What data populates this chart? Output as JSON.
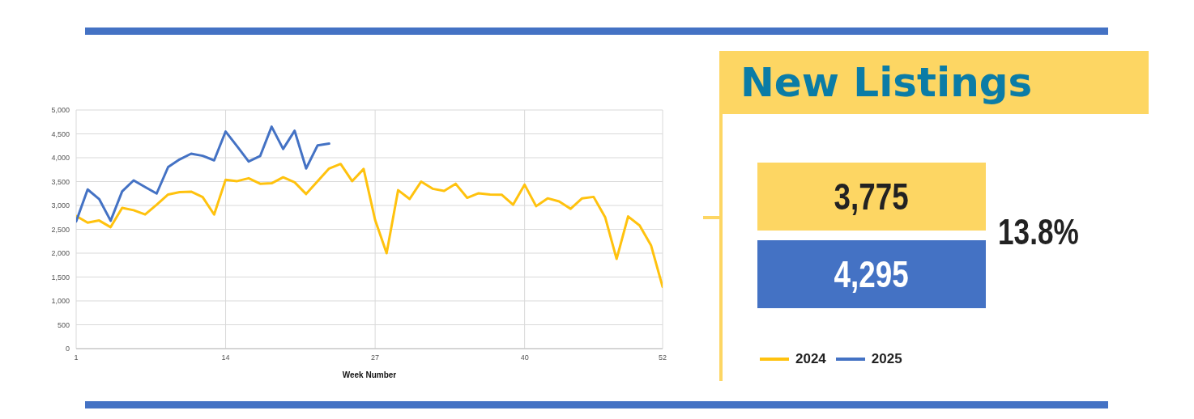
{
  "chart_data": {
    "type": "line",
    "title": "New Listings",
    "xlabel": "Week Number",
    "x": [
      1,
      2,
      3,
      4,
      5,
      6,
      7,
      8,
      9,
      10,
      11,
      12,
      13,
      14,
      15,
      16,
      17,
      18,
      19,
      20,
      21,
      22,
      23,
      24,
      25,
      26,
      27,
      28,
      29,
      30,
      31,
      32,
      33,
      34,
      35,
      36,
      37,
      38,
      39,
      40,
      41,
      42,
      43,
      44,
      45,
      46,
      47,
      48,
      49,
      50,
      51,
      52
    ],
    "series": [
      {
        "name": "2024",
        "color": "#ffc20e",
        "values": [
          2780,
          2640,
          2685,
          2545,
          2950,
          2900,
          2810,
          3015,
          3230,
          3280,
          3290,
          3175,
          2810,
          3540,
          3510,
          3570,
          3455,
          3465,
          3590,
          3485,
          3240,
          3510,
          3775,
          3870,
          3510,
          3765,
          2695,
          2000,
          3320,
          3135,
          3500,
          3350,
          3305,
          3455,
          3160,
          3255,
          3230,
          3225,
          3015,
          3435,
          2985,
          3150,
          3085,
          2930,
          3150,
          3180,
          2755,
          1880,
          2770,
          2580,
          2160,
          1295
        ]
      },
      {
        "name": "2025",
        "color": "#4472c4",
        "values": [
          2665,
          3335,
          3135,
          2680,
          3295,
          3525,
          3385,
          3250,
          3805,
          3965,
          4085,
          4040,
          3945,
          4550,
          4240,
          3920,
          4035,
          4650,
          4185,
          4565,
          3775,
          4260,
          4295,
          null,
          null,
          null,
          null,
          null,
          null,
          null,
          null,
          null,
          null,
          null,
          null,
          null,
          null,
          null,
          null,
          null,
          null,
          null,
          null,
          null,
          null,
          null,
          null,
          null,
          null,
          null,
          null,
          null
        ]
      }
    ],
    "xlim": [
      1,
      52
    ],
    "xticks": [
      1,
      14,
      27,
      40,
      52
    ],
    "ylim": [
      0,
      5000
    ],
    "yticks": [
      0,
      500,
      {
        "value": 1000,
        "label": "1,000"
      },
      {
        "value": 1500,
        "label": "1,500"
      },
      {
        "value": 2000,
        "label": "2,000"
      },
      {
        "value": 2500,
        "label": "2,500"
      },
      {
        "value": 3000,
        "label": "3,000"
      },
      {
        "value": 3500,
        "label": "3,500"
      },
      {
        "value": 4000,
        "label": "4,000"
      },
      {
        "value": 4500,
        "label": "4,500"
      },
      {
        "value": 5000,
        "label": "5,000"
      }
    ],
    "grid": true,
    "legend": "bottom right",
    "marker": "none",
    "line_style": "solid",
    "annotations": [
      "3,775",
      "4,295",
      "13.8%"
    ]
  }
}
